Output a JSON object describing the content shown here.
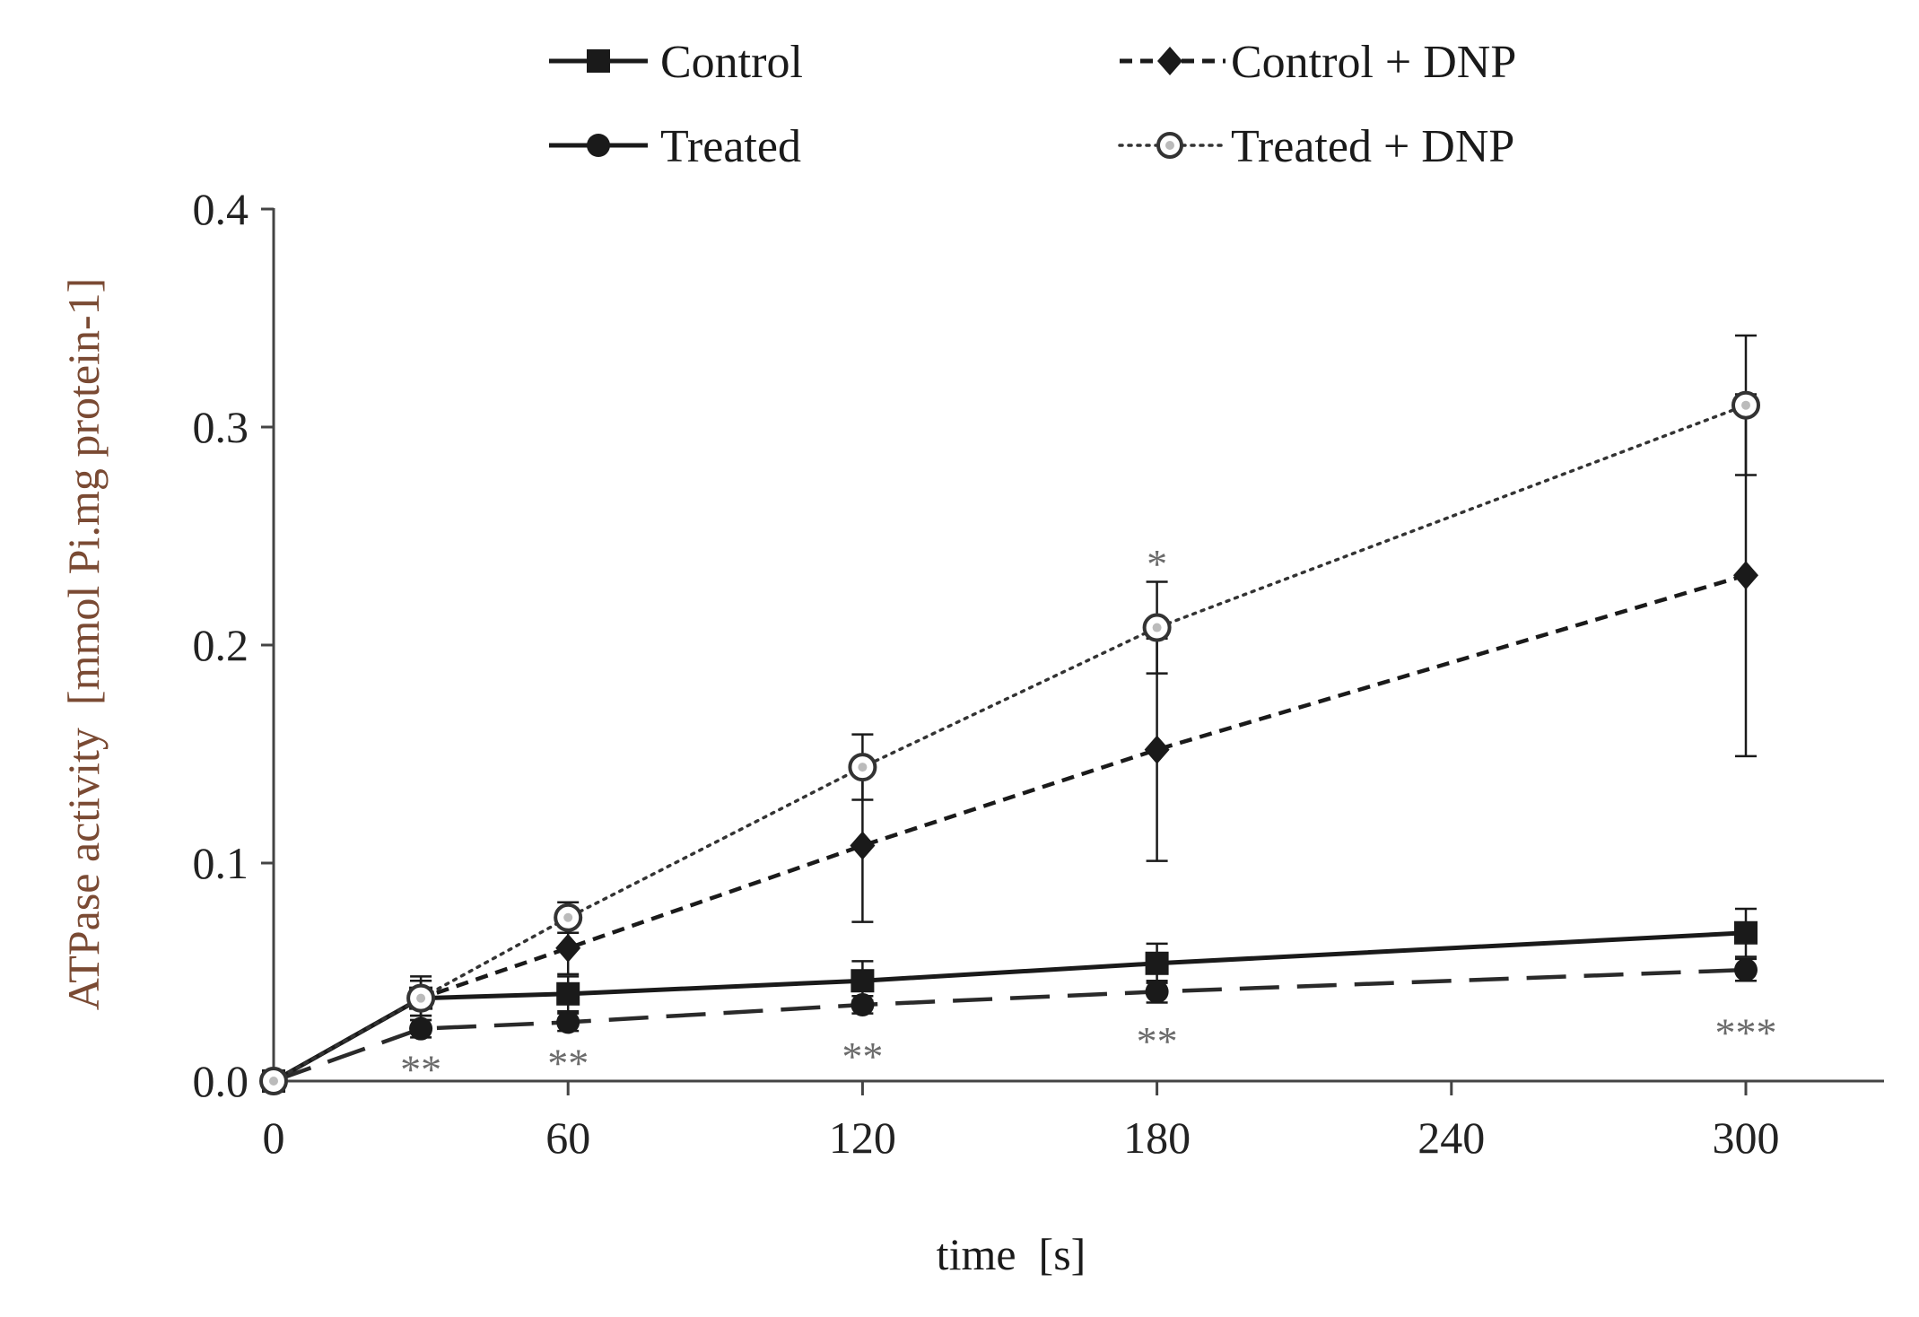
{
  "chart_data": {
    "type": "line",
    "xlabel": "time  [s]",
    "ylabel": "ATPase activity  [mmol Pi.mg protein-1]",
    "xlim": [
      0,
      330
    ],
    "ylim": [
      0,
      0.4
    ],
    "x_ticks": [
      0,
      60,
      120,
      180,
      240,
      300
    ],
    "x_tick_labels": [
      "0",
      "60",
      "120",
      "180",
      "240",
      "300"
    ],
    "y_ticks": [
      0,
      0.1,
      0.2,
      0.3,
      0.4
    ],
    "y_tick_labels": [
      "0.0",
      "0.1",
      "0.2",
      "0.3",
      "0.4"
    ],
    "grid": false,
    "legend_position": "top",
    "series": [
      {
        "name": "Control",
        "line": "solid",
        "marker": "square",
        "x": [
          0,
          30,
          60,
          120,
          180,
          300
        ],
        "y": [
          0,
          0.038,
          0.04,
          0.046,
          0.054,
          0.068
        ],
        "err": [
          0,
          0.01,
          0.008,
          0.009,
          0.009,
          0.011
        ]
      },
      {
        "name": "Control + DNP",
        "line": "dashed",
        "marker": "diamond",
        "x": [
          0,
          30,
          60,
          120,
          180,
          300
        ],
        "y": [
          0,
          0.038,
          0.061,
          0.108,
          0.152,
          0.232
        ],
        "err": [
          0,
          0.008,
          0.012,
          0.035,
          0.051,
          0.083
        ]
      },
      {
        "name": "Treated",
        "line": "longdash",
        "marker": "circle",
        "x": [
          0,
          30,
          60,
          120,
          180,
          300
        ],
        "y": [
          0,
          0.024,
          0.027,
          0.035,
          0.041,
          0.051
        ],
        "err": [
          0,
          0.004,
          0.004,
          0.004,
          0.005,
          0.005
        ]
      },
      {
        "name": "Treated + DNP",
        "line": "dotted",
        "marker": "open-circle",
        "x": [
          0,
          30,
          60,
          120,
          180,
          300
        ],
        "y": [
          0,
          0.038,
          0.075,
          0.144,
          0.208,
          0.31
        ],
        "err": [
          0,
          0.008,
          0.007,
          0.015,
          0.021,
          0.032
        ]
      }
    ],
    "annotations": [
      {
        "x": 30,
        "y": 0.008,
        "text": "**"
      },
      {
        "x": 60,
        "y": 0.011,
        "text": "**"
      },
      {
        "x": 120,
        "y": 0.014,
        "text": "**"
      },
      {
        "x": 180,
        "y": 0.021,
        "text": "**"
      },
      {
        "x": 300,
        "y": 0.025,
        "text": "***"
      },
      {
        "x": 180,
        "y": 0.24,
        "text": "*"
      }
    ]
  },
  "legend": {
    "items": [
      "Control",
      "Control + DNP",
      "Treated",
      "Treated + DNP"
    ]
  },
  "colors": {
    "axis": "#444444",
    "line": "#1a1a1a",
    "ylabel": "#7a4a33",
    "annotation": "#6b6b6b"
  }
}
